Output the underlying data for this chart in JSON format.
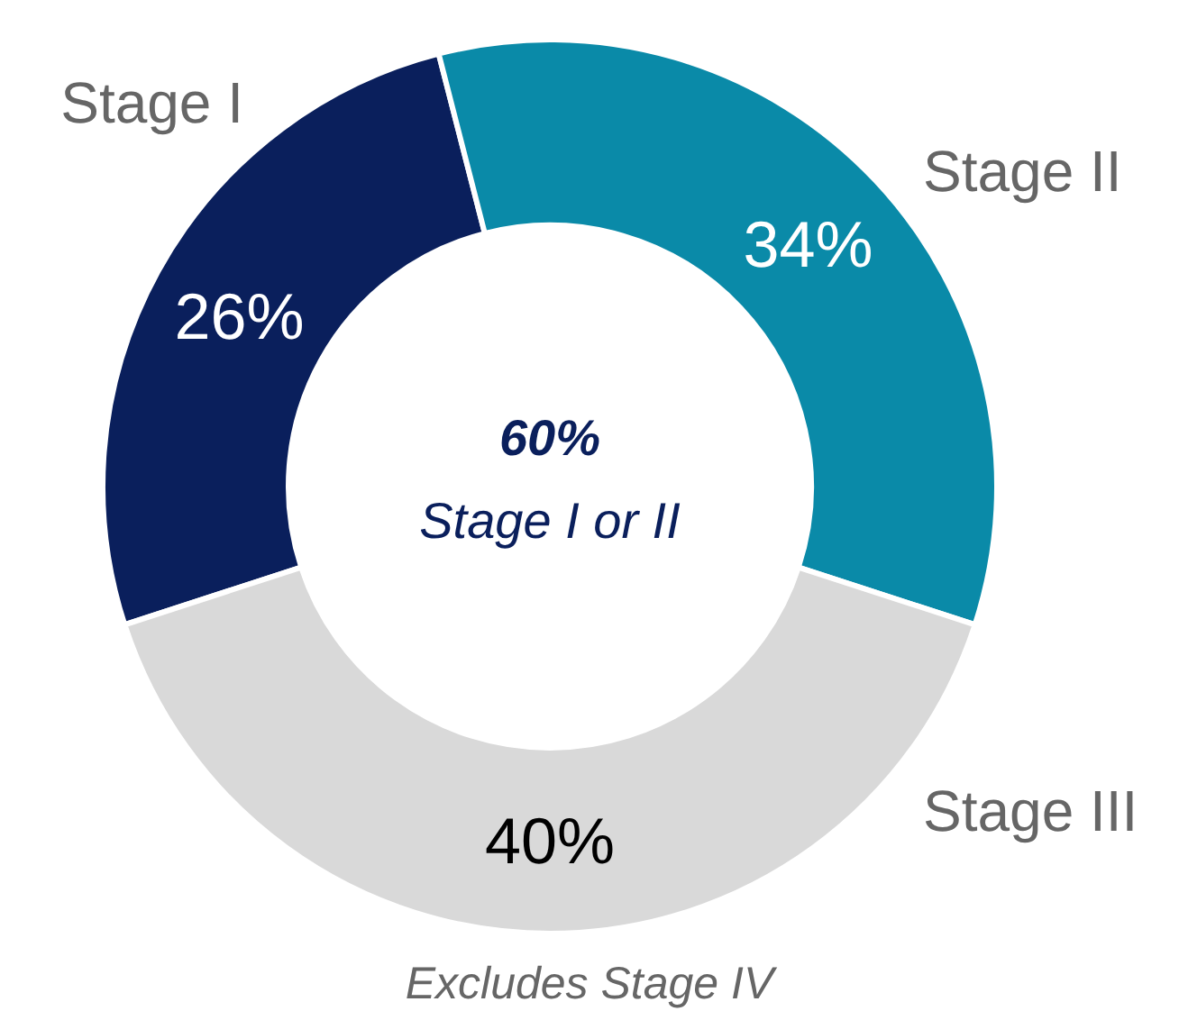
{
  "chart_data": {
    "type": "donut",
    "categories": [
      "Stage I",
      "Stage II",
      "Stage III"
    ],
    "values": [
      26,
      34,
      40
    ],
    "colors": [
      "#0a1f5c",
      "#0a8aa8",
      "#d9d9d9"
    ],
    "value_labels": [
      "26%",
      "34%",
      "40%"
    ],
    "annotations": [
      "60%",
      "Stage I or II",
      "Excludes Stage IV"
    ]
  }
}
